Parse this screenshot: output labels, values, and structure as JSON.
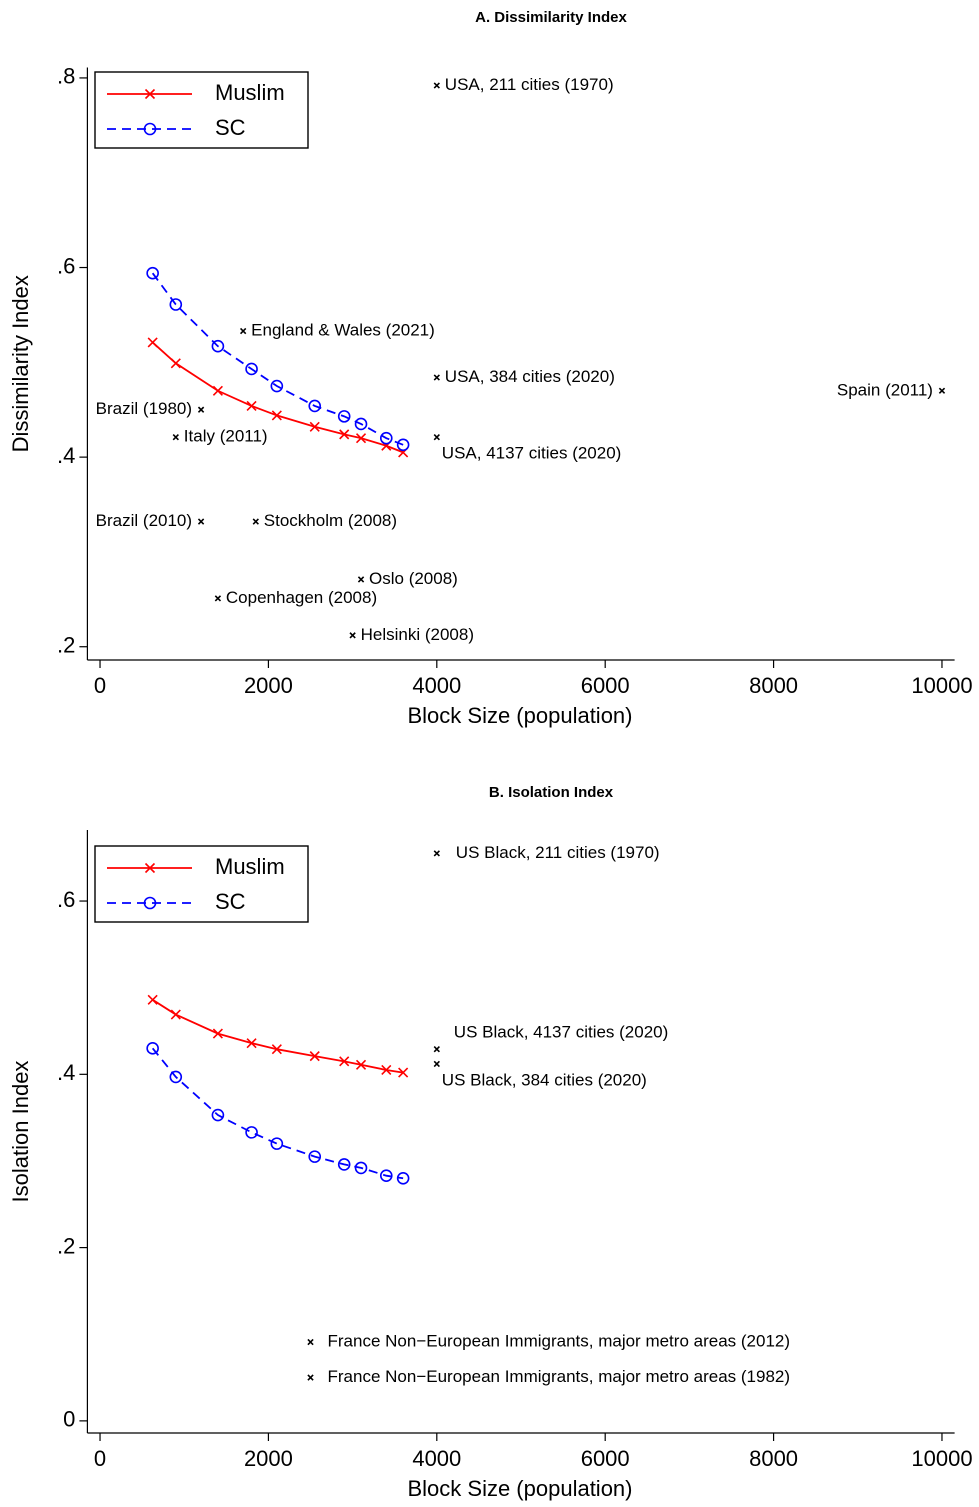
{
  "chart_data": [
    {
      "type": "line",
      "title": "A. Dissimilarity Index",
      "xlabel": "Block Size (population)",
      "ylabel": "Dissimilarity Index",
      "xlim": [
        -150,
        10150
      ],
      "ylim": [
        0.186,
        0.811
      ],
      "xticks": [
        0,
        2000,
        4000,
        6000,
        8000,
        10000
      ],
      "yticks": [
        {
          "value": 0.2,
          "label": ".2"
        },
        {
          "value": 0.4,
          "label": ".4"
        },
        {
          "value": 0.6,
          "label": ".6"
        },
        {
          "value": 0.8,
          "label": ".8"
        }
      ],
      "legend": "top-left",
      "grid": false,
      "x": [
        625,
        900,
        1400,
        1800,
        2100,
        2550,
        2900,
        3100,
        3400,
        3600
      ],
      "series": [
        {
          "name": "Muslim",
          "color": "#ff0000",
          "marker": "x",
          "dash": "solid",
          "values": [
            0.521,
            0.499,
            0.47,
            0.454,
            0.444,
            0.432,
            0.424,
            0.42,
            0.412,
            0.405
          ]
        },
        {
          "name": "SC",
          "color": "#0000ff",
          "marker": "circle",
          "dash": "dashed",
          "values": [
            0.594,
            0.561,
            0.517,
            0.493,
            0.475,
            0.454,
            0.443,
            0.435,
            0.42,
            0.413
          ]
        }
      ],
      "annotations": [
        {
          "label": "USA, 211 cities (1970)",
          "x": 4000,
          "y": 0.792,
          "side": "right"
        },
        {
          "label": "England & Wales (2021)",
          "x": 1700,
          "y": 0.533,
          "side": "right"
        },
        {
          "label": "USA, 384 cities (2020)",
          "x": 4000,
          "y": 0.484,
          "side": "right"
        },
        {
          "label": "Spain (2011)",
          "x": 10000,
          "y": 0.47,
          "side": "left"
        },
        {
          "label": "Brazil (1980)",
          "x": 1200,
          "y": 0.45,
          "side": "left"
        },
        {
          "label": "Italy (2011)",
          "x": 900,
          "y": 0.421,
          "side": "right"
        },
        {
          "label": "USA, 4137 cities (2020)",
          "x": 4000,
          "y": 0.421,
          "side": "below"
        },
        {
          "label": "Brazil (2010)",
          "x": 1200,
          "y": 0.332,
          "side": "left"
        },
        {
          "label": "Stockholm (2008)",
          "x": 1850,
          "y": 0.332,
          "side": "right"
        },
        {
          "label": "Oslo (2008)",
          "x": 3100,
          "y": 0.271,
          "side": "right"
        },
        {
          "label": "Copenhagen (2008)",
          "x": 1400,
          "y": 0.251,
          "side": "right"
        },
        {
          "label": "Helsinki (2008)",
          "x": 3000,
          "y": 0.212,
          "side": "right"
        }
      ]
    },
    {
      "type": "line",
      "title": "B. Isolation Index",
      "xlabel": "Block Size (population)",
      "ylabel": "Isolation Index",
      "xlim": [
        -150,
        10150
      ],
      "ylim": [
        -0.014,
        0.682
      ],
      "xticks": [
        0,
        2000,
        4000,
        6000,
        8000,
        10000
      ],
      "yticks": [
        0,
        {
          "value": 0.2,
          "label": ".2"
        },
        {
          "value": 0.4,
          "label": ".4"
        },
        {
          "value": 0.6,
          "label": ".6"
        }
      ],
      "legend": "top-left",
      "grid": false,
      "x": [
        625,
        900,
        1400,
        1800,
        2100,
        2550,
        2900,
        3100,
        3400,
        3600
      ],
      "series": [
        {
          "name": "Muslim",
          "color": "#ff0000",
          "marker": "x",
          "dash": "solid",
          "values": [
            0.486,
            0.469,
            0.447,
            0.436,
            0.429,
            0.421,
            0.415,
            0.411,
            0.405,
            0.402
          ]
        },
        {
          "name": "SC",
          "color": "#0000ff",
          "marker": "circle",
          "dash": "dashed",
          "values": [
            0.43,
            0.397,
            0.353,
            0.333,
            0.32,
            0.305,
            0.296,
            0.292,
            0.283,
            0.28
          ]
        }
      ],
      "annotations": [
        {
          "label": "US Black, 211 cities (1970)",
          "x": 4000,
          "y": 0.655,
          "side": "right"
        },
        {
          "label": "US Black, 4137 cities (2020)",
          "x": 4000,
          "y": 0.429,
          "side": "above"
        },
        {
          "label": "US Black, 384 cities (2020)",
          "x": 4000,
          "y": 0.412,
          "side": "below"
        },
        {
          "label": "France Non−European Immigrants, major metro areas (2012)",
          "x": 2500,
          "y": 0.091,
          "side": "right"
        },
        {
          "label": "France Non−European Immigrants, major metro areas (1982)",
          "x": 2500,
          "y": 0.05,
          "side": "right"
        }
      ]
    }
  ]
}
